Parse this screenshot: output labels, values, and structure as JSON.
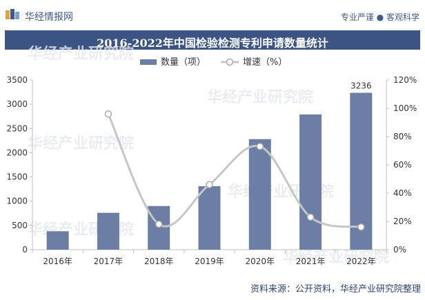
{
  "header": {
    "brand": "华经情报网",
    "tagline": "专业严谨 ● 客观科学"
  },
  "footer": {
    "source": "资料来源：公开资料，华经产业研究院整理"
  },
  "watermark": "华经产业研究院",
  "colors": {
    "bar": "#6d7ea4",
    "line": "#c6c6c6",
    "title_bg": "#3b5483",
    "brand": "#3f5a8c"
  },
  "chart_data": {
    "type": "bar+line",
    "title": "2016-2022年中国检验检测专利申请数量统计",
    "categories": [
      "2016年",
      "2017年",
      "2018年",
      "2019年",
      "2020年",
      "2021年",
      "2022年"
    ],
    "series": [
      {
        "name": "数量（项）",
        "type": "bar",
        "axis": "left",
        "values": [
          380,
          760,
          900,
          1310,
          2280,
          2790,
          3236
        ]
      },
      {
        "name": "增速（%）",
        "type": "line",
        "axis": "right",
        "values": [
          null,
          96,
          18,
          46,
          73,
          23,
          16
        ]
      }
    ],
    "data_labels": [
      {
        "series": 0,
        "index": 6,
        "text": "3236"
      }
    ],
    "y_left": {
      "min": 0,
      "max": 3500,
      "ticks": [
        "0",
        "500",
        "1000",
        "1500",
        "2000",
        "2500",
        "3000",
        "3500"
      ]
    },
    "y_right": {
      "min": 0,
      "max": 120,
      "ticks": [
        "0%",
        "20%",
        "40%",
        "60%",
        "80%",
        "100%",
        "120%"
      ]
    },
    "legend_position": "top-center",
    "grid": false
  }
}
